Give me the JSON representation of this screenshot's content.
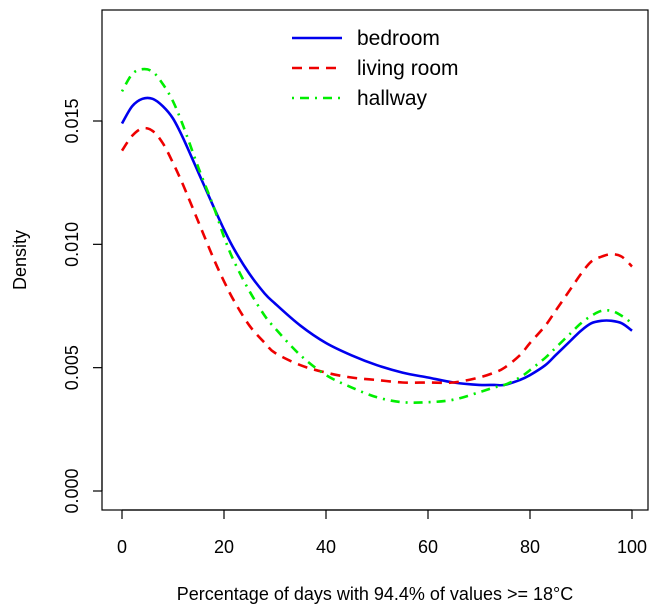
{
  "chart_data": {
    "type": "line",
    "title": "",
    "xlabel": "Percentage of days with 94.4% of values >= 18°C",
    "ylabel": "Density",
    "xlim": [
      0,
      100
    ],
    "ylim": [
      0,
      0.0175
    ],
    "x_ticks": [
      0,
      20,
      40,
      60,
      80,
      100
    ],
    "x_tick_labels": [
      "0",
      "20",
      "40",
      "60",
      "80",
      "100"
    ],
    "y_ticks": [
      0.0,
      0.005,
      0.01,
      0.015
    ],
    "y_tick_labels": [
      "0.000",
      "0.005",
      "0.010",
      "0.015"
    ],
    "grid": false,
    "legend_position": "top-center",
    "series": [
      {
        "name": "bedroom",
        "color": "#0000ee",
        "dash": "solid",
        "x": [
          0,
          2,
          4,
          6,
          8,
          10,
          12,
          15,
          18,
          20,
          22,
          25,
          28,
          30,
          35,
          40,
          45,
          50,
          55,
          60,
          65,
          70,
          73,
          75,
          78,
          80,
          83,
          85,
          88,
          90,
          92,
          94,
          96,
          98,
          100
        ],
        "y": [
          0.0149,
          0.0156,
          0.0159,
          0.0159,
          0.0156,
          0.0151,
          0.0143,
          0.0129,
          0.0115,
          0.0106,
          0.0098,
          0.0088,
          0.008,
          0.0076,
          0.0067,
          0.006,
          0.0055,
          0.0051,
          0.0048,
          0.0046,
          0.0044,
          0.0043,
          0.0043,
          0.0043,
          0.0045,
          0.0047,
          0.0051,
          0.0055,
          0.0061,
          0.0065,
          0.0068,
          0.0069,
          0.0069,
          0.0068,
          0.0065
        ]
      },
      {
        "name": "living room",
        "color": "#ee0000",
        "dash": "dashed",
        "x": [
          0,
          2,
          4,
          6,
          8,
          10,
          12,
          15,
          18,
          20,
          22,
          25,
          28,
          30,
          35,
          40,
          45,
          50,
          55,
          60,
          65,
          70,
          73,
          75,
          78,
          80,
          83,
          85,
          88,
          90,
          92,
          94,
          96,
          98,
          100
        ],
        "y": [
          0.0138,
          0.0144,
          0.0147,
          0.0146,
          0.0141,
          0.0133,
          0.0124,
          0.0109,
          0.0094,
          0.0085,
          0.0077,
          0.0067,
          0.006,
          0.0056,
          0.0051,
          0.0048,
          0.0046,
          0.0045,
          0.0044,
          0.0044,
          0.0044,
          0.0046,
          0.0048,
          0.005,
          0.0055,
          0.006,
          0.0067,
          0.0073,
          0.0082,
          0.0088,
          0.0093,
          0.0095,
          0.0096,
          0.0095,
          0.0091
        ]
      },
      {
        "name": "hallway",
        "color": "#00ee00",
        "dash": "dotdash",
        "x": [
          0,
          2,
          4,
          6,
          8,
          10,
          12,
          15,
          18,
          20,
          22,
          25,
          28,
          30,
          35,
          40,
          45,
          50,
          55,
          60,
          65,
          70,
          73,
          75,
          78,
          80,
          83,
          85,
          88,
          90,
          92,
          94,
          96,
          98,
          100
        ],
        "y": [
          0.0162,
          0.0169,
          0.0171,
          0.017,
          0.0165,
          0.0158,
          0.0148,
          0.0131,
          0.0115,
          0.0103,
          0.0093,
          0.0081,
          0.0071,
          0.0066,
          0.0055,
          0.0047,
          0.0042,
          0.0038,
          0.0036,
          0.0036,
          0.0037,
          0.004,
          0.0042,
          0.0043,
          0.0046,
          0.0049,
          0.0054,
          0.0058,
          0.0064,
          0.0068,
          0.0071,
          0.0073,
          0.0073,
          0.0071,
          0.0068
        ]
      }
    ]
  }
}
